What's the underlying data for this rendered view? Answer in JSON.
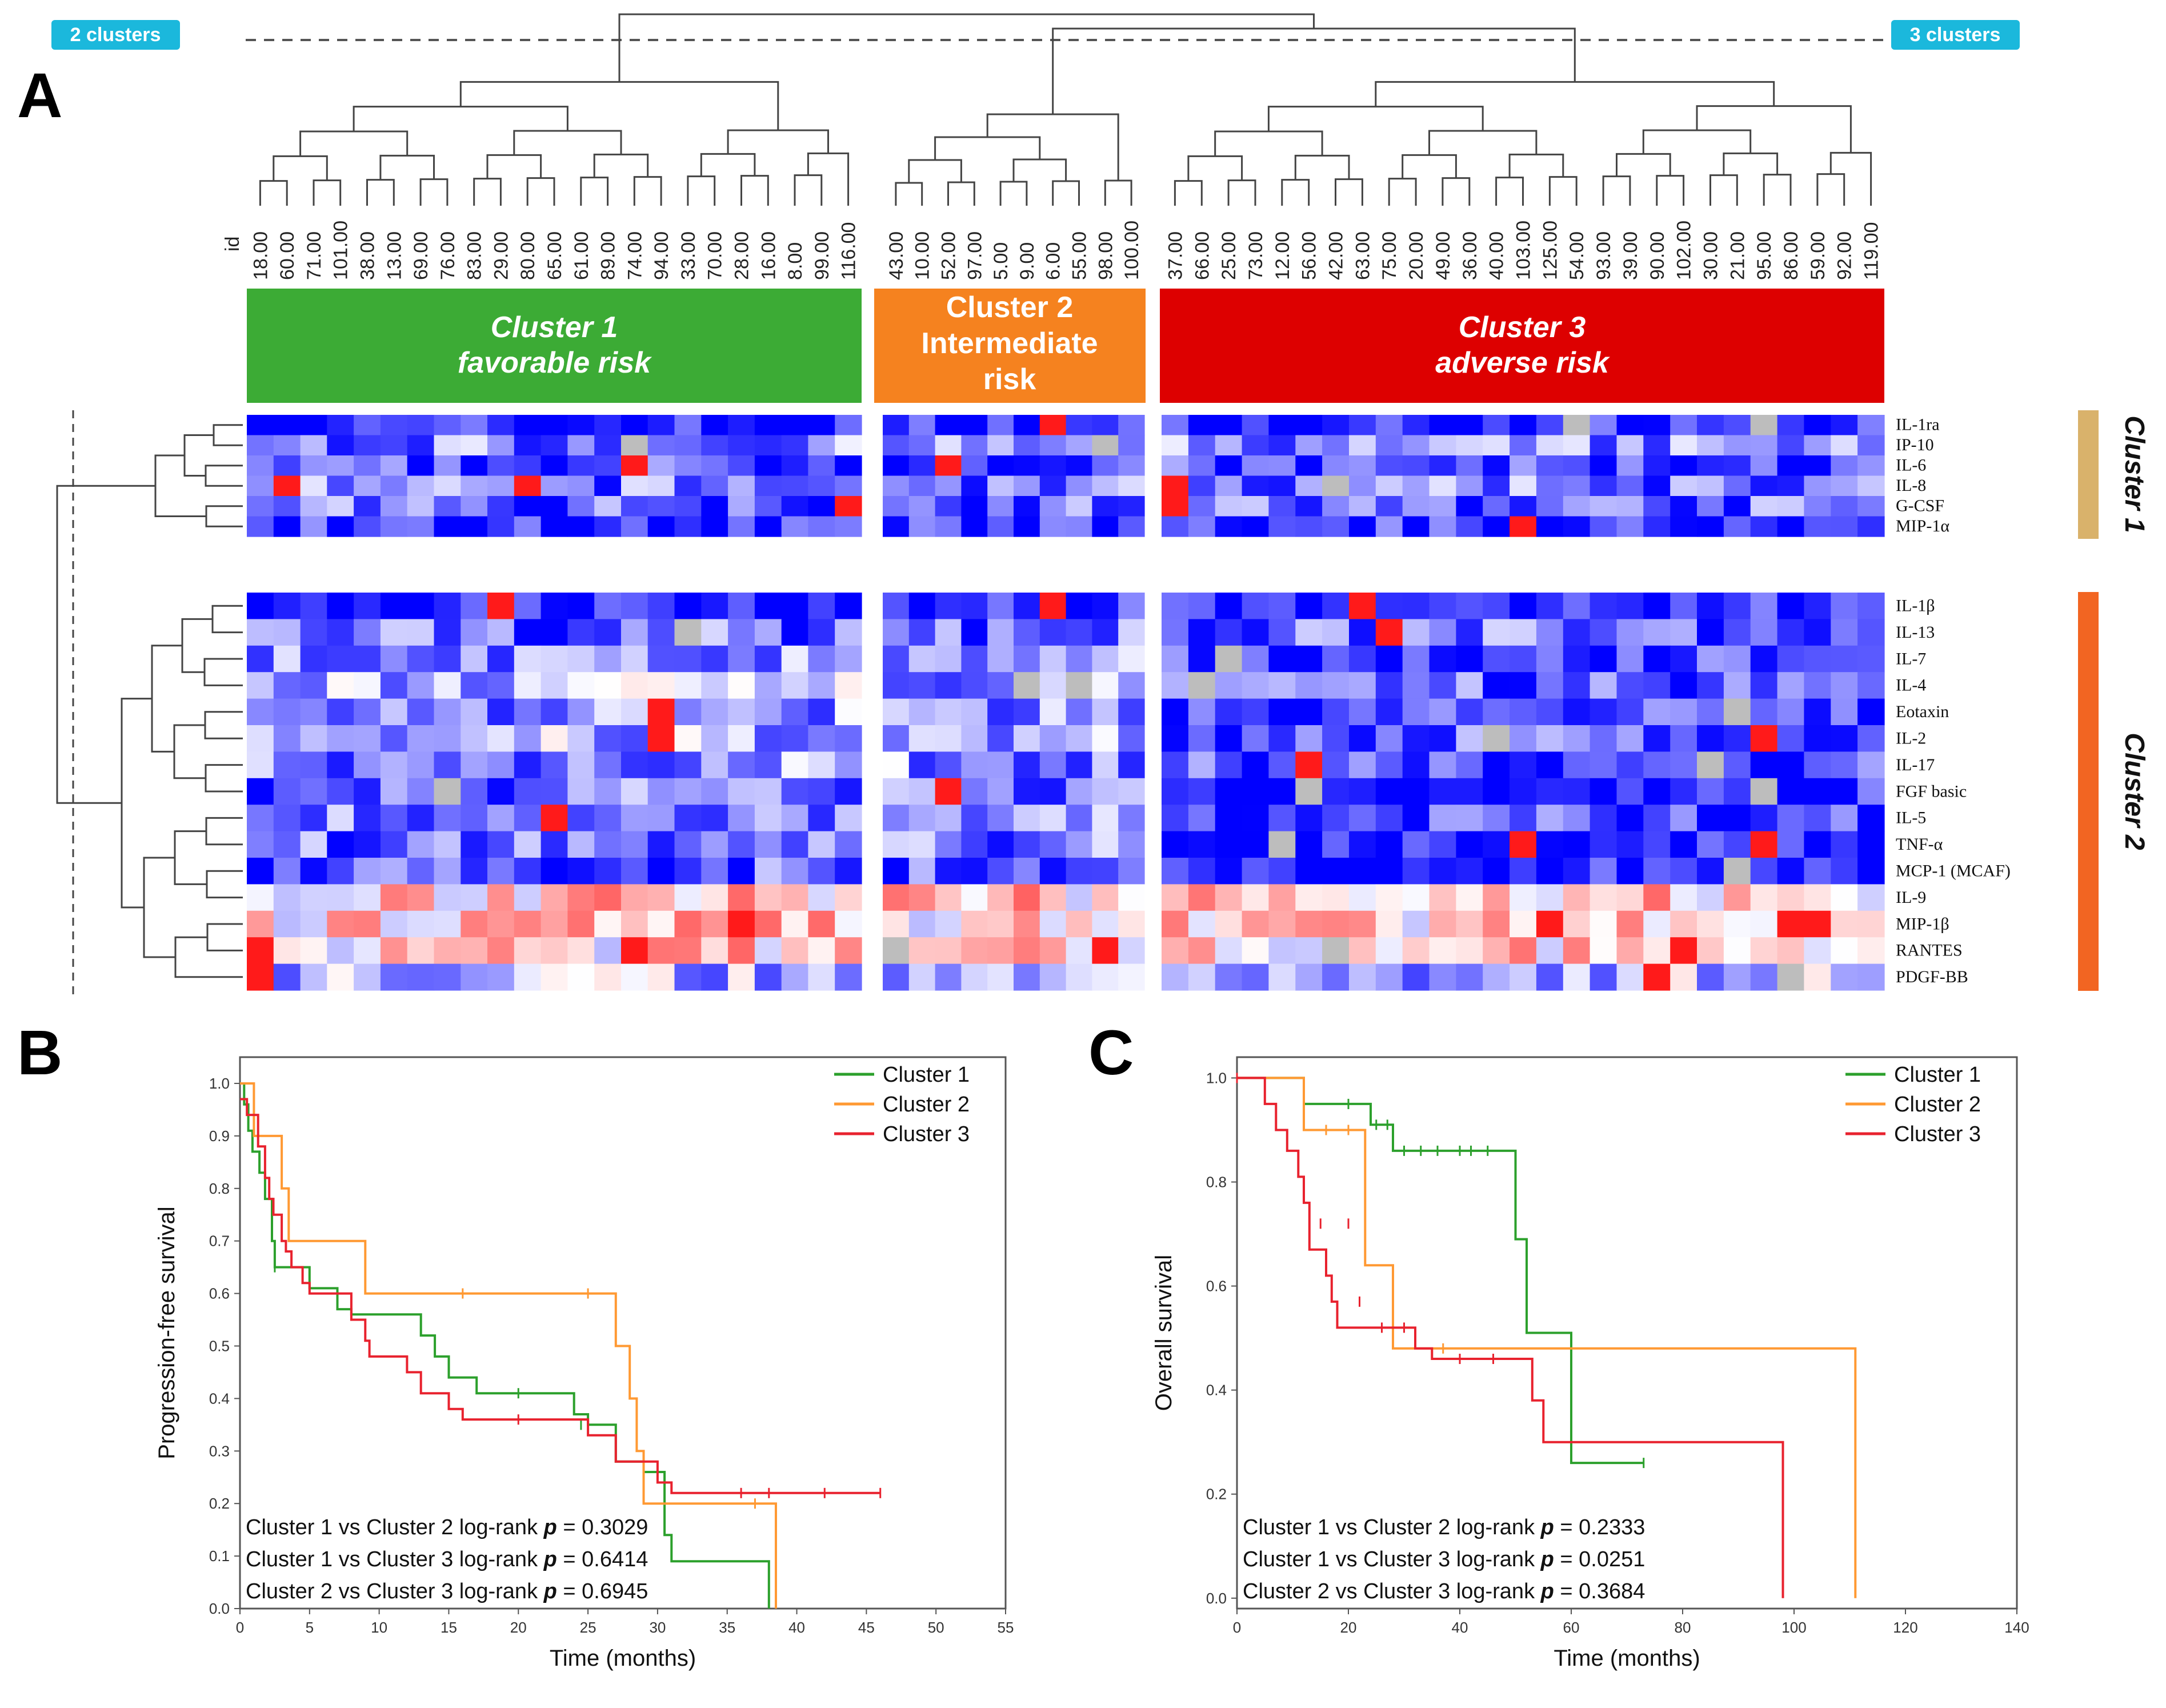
{
  "panels": {
    "A": "A",
    "B": "B",
    "C": "C"
  },
  "badges": {
    "left": "2 clusters",
    "right": "3 clusters"
  },
  "colors": {
    "badge": "#1bb8dc",
    "cluster1": "#3cab35",
    "cluster2": "#f5821f",
    "cluster3": "#dd0000",
    "side1": "#d9b26b",
    "side2": "#f26522",
    "blue": "#0000ff",
    "red": "#ff0000",
    "na": "#bdbdbd"
  },
  "heatmap": {
    "id_header": "id",
    "groups": [
      {
        "key": "g1",
        "ids": [
          "18.00",
          "60.00",
          "71.00",
          "101.00",
          "38.00",
          "13.00",
          "69.00",
          "76.00",
          "83.00",
          "29.00",
          "80.00",
          "65.00",
          "61.00",
          "89.00",
          "74.00",
          "94.00",
          "33.00",
          "70.00",
          "28.00",
          "16.00",
          "8.00",
          "99.00",
          "116.00"
        ]
      },
      {
        "key": "g2",
        "ids": [
          "43.00",
          "10.00",
          "52.00",
          "97.00",
          "5.00",
          "9.00",
          "6.00",
          "55.00",
          "98.00",
          "100.00"
        ]
      },
      {
        "key": "g3",
        "ids": [
          "37.00",
          "66.00",
          "25.00",
          "73.00",
          "12.00",
          "56.00",
          "42.00",
          "63.00",
          "75.00",
          "20.00",
          "49.00",
          "36.00",
          "40.00",
          "103.00",
          "125.00",
          "54.00",
          "93.00",
          "39.00",
          "90.00",
          "102.00",
          "30.00",
          "21.00",
          "95.00",
          "86.00",
          "59.00",
          "92.00",
          "119.00"
        ]
      }
    ],
    "cluster_boxes": [
      {
        "line1": "Cluster 1",
        "line2": "favorable risk"
      },
      {
        "line1": "Cluster 2",
        "line2": "Intermediate",
        "line3": "risk"
      },
      {
        "line1": "Cluster 3",
        "line2": "adverse risk"
      }
    ],
    "rows_top": [
      "IL-1ra",
      "IP-10",
      "IL-6",
      "IL-8",
      "G-CSF",
      "MIP-1α"
    ],
    "rows_bottom": [
      "IL-1β",
      "IL-13",
      "IL-7",
      "IL-4",
      "Eotaxin",
      "IL-2",
      "IL-17",
      "FGF basic",
      "IL-5",
      "TNF-α",
      "MCP-1 (MCAF)",
      "IL-9",
      "MIP-1β",
      "RANTES",
      "PDGF-BB"
    ],
    "side_labels": [
      "Cluster 1",
      "Cluster 2"
    ]
  },
  "chart_data": [
    {
      "type": "line",
      "panel": "B",
      "xlabel": "Time (months)",
      "ylabel": "Progression-free survival",
      "xlim": [
        0,
        55
      ],
      "ylim": [
        0,
        1.05
      ],
      "xticks": [
        "0",
        "5",
        "10",
        "15",
        "20",
        "25",
        "30",
        "35",
        "40",
        "45",
        "50",
        "55"
      ],
      "yticks": [
        "0.0",
        "0.1",
        "0.2",
        "0.3",
        "0.4",
        "0.5",
        "0.6",
        "0.7",
        "0.8",
        "0.9",
        "1.0"
      ],
      "legend": [
        "Cluster 1",
        "Cluster 2",
        "Cluster 3"
      ],
      "legend_position": "top-right",
      "series": [
        {
          "name": "Cluster 1",
          "color": "#2ca02c",
          "steps": [
            [
              0,
              1.0
            ],
            [
              0.3,
              0.96
            ],
            [
              0.6,
              0.91
            ],
            [
              0.9,
              0.87
            ],
            [
              1.4,
              0.83
            ],
            [
              1.8,
              0.78
            ],
            [
              2.3,
              0.7
            ],
            [
              2.5,
              0.65
            ],
            [
              5,
              0.61
            ],
            [
              7,
              0.57
            ],
            [
              8,
              0.56
            ],
            [
              13,
              0.52
            ],
            [
              14,
              0.48
            ],
            [
              15,
              0.44
            ],
            [
              17,
              0.41
            ],
            [
              24,
              0.37
            ],
            [
              25,
              0.35
            ],
            [
              27,
              0.28
            ],
            [
              29,
              0.26
            ],
            [
              30.5,
              0.14
            ],
            [
              31,
              0.09
            ],
            [
              38,
              0.0
            ],
            [
              38,
              0.0
            ]
          ],
          "censors": [
            [
              2.5,
              0.65
            ],
            [
              20,
              0.41
            ],
            [
              24.5,
              0.35
            ]
          ]
        },
        {
          "name": "Cluster 2",
          "color": "#ff9933",
          "steps": [
            [
              0,
              1.0
            ],
            [
              1,
              0.9
            ],
            [
              3,
              0.8
            ],
            [
              3.5,
              0.7
            ],
            [
              9,
              0.6
            ],
            [
              27,
              0.5
            ],
            [
              28,
              0.4
            ],
            [
              28.5,
              0.3
            ],
            [
              29,
              0.2
            ],
            [
              38.5,
              0.0
            ],
            [
              38.5,
              0.0
            ]
          ],
          "censors": [
            [
              16,
              0.6
            ],
            [
              25,
              0.6
            ],
            [
              37,
              0.2
            ]
          ]
        },
        {
          "name": "Cluster 3",
          "color": "#e8222e",
          "steps": [
            [
              0,
              0.97
            ],
            [
              0.5,
              0.94
            ],
            [
              1.3,
              0.88
            ],
            [
              1.8,
              0.82
            ],
            [
              2.1,
              0.78
            ],
            [
              2.4,
              0.75
            ],
            [
              3,
              0.7
            ],
            [
              3.3,
              0.68
            ],
            [
              3.7,
              0.65
            ],
            [
              4.5,
              0.62
            ],
            [
              5,
              0.6
            ],
            [
              8,
              0.55
            ],
            [
              9,
              0.51
            ],
            [
              9.3,
              0.48
            ],
            [
              12,
              0.45
            ],
            [
              13,
              0.41
            ],
            [
              15,
              0.38
            ],
            [
              16,
              0.36
            ],
            [
              25,
              0.33
            ],
            [
              27,
              0.28
            ],
            [
              30,
              0.24
            ],
            [
              31,
              0.22
            ],
            [
              46,
              0.22
            ]
          ],
          "censors": [
            [
              20,
              0.36
            ],
            [
              36,
              0.22
            ],
            [
              38,
              0.22
            ],
            [
              42,
              0.22
            ],
            [
              46,
              0.22
            ]
          ]
        }
      ],
      "annotations": [
        {
          "text": "Cluster 1 vs Cluster 2 log-rank",
          "p": "p",
          "value": "= 0.3029"
        },
        {
          "text": "Cluster 1 vs Cluster 3 log-rank",
          "p": "p",
          "value": "= 0.6414"
        },
        {
          "text": "Cluster 2 vs Cluster 3 log-rank",
          "p": "p",
          "value": "= 0.6945"
        }
      ]
    },
    {
      "type": "line",
      "panel": "C",
      "xlabel": "Time (months)",
      "ylabel": "Overall survival",
      "xlim": [
        0,
        140
      ],
      "ylim": [
        -0.02,
        1.04
      ],
      "xticks": [
        "0",
        "20",
        "40",
        "60",
        "80",
        "100",
        "120",
        "140"
      ],
      "yticks": [
        "0.0",
        "0.2",
        "0.4",
        "0.6",
        "0.8",
        "1.0"
      ],
      "legend": [
        "Cluster 1",
        "Cluster 2",
        "Cluster 3"
      ],
      "legend_position": "top-right",
      "series": [
        {
          "name": "Cluster 1",
          "color": "#2ca02c",
          "steps": [
            [
              0,
              1.0
            ],
            [
              12,
              0.95
            ],
            [
              20,
              0.95
            ],
            [
              24,
              0.91
            ],
            [
              28,
              0.86
            ],
            [
              49,
              0.86
            ],
            [
              50,
              0.69
            ],
            [
              52,
              0.51
            ],
            [
              59,
              0.51
            ],
            [
              60,
              0.26
            ],
            [
              73,
              0.26
            ]
          ],
          "censors": [
            [
              20,
              0.95
            ],
            [
              25,
              0.91
            ],
            [
              27,
              0.91
            ],
            [
              30,
              0.86
            ],
            [
              33,
              0.86
            ],
            [
              36,
              0.86
            ],
            [
              40,
              0.86
            ],
            [
              42,
              0.86
            ],
            [
              45,
              0.86
            ],
            [
              73,
              0.26
            ]
          ]
        },
        {
          "name": "Cluster 2",
          "color": "#ff9933",
          "steps": [
            [
              0,
              1.0
            ],
            [
              12,
              0.9
            ],
            [
              22,
              0.9
            ],
            [
              23,
              0.64
            ],
            [
              27,
              0.64
            ],
            [
              28,
              0.48
            ],
            [
              111,
              0.48
            ],
            [
              111,
              0.0
            ]
          ],
          "censors": [
            [
              16,
              0.9
            ],
            [
              20,
              0.9
            ],
            [
              37,
              0.48
            ]
          ]
        },
        {
          "name": "Cluster 3",
          "color": "#e8222e",
          "steps": [
            [
              0,
              1.0
            ],
            [
              5,
              0.95
            ],
            [
              7,
              0.9
            ],
            [
              9,
              0.86
            ],
            [
              11,
              0.81
            ],
            [
              12,
              0.76
            ],
            [
              13,
              0.67
            ],
            [
              16,
              0.62
            ],
            [
              17,
              0.57
            ],
            [
              18,
              0.52
            ],
            [
              30,
              0.52
            ],
            [
              32,
              0.48
            ],
            [
              35,
              0.46
            ],
            [
              53,
              0.38
            ],
            [
              55,
              0.3
            ],
            [
              98,
              0.3
            ],
            [
              98,
              0.0
            ]
          ],
          "censors": [
            [
              0,
              1.0
            ],
            [
              15,
              0.72
            ],
            [
              20,
              0.72
            ],
            [
              22,
              0.57
            ],
            [
              26,
              0.52
            ],
            [
              30,
              0.52
            ],
            [
              40,
              0.46
            ],
            [
              46,
              0.46
            ]
          ]
        }
      ],
      "annotations": [
        {
          "text": "Cluster 1 vs Cluster 2 log-rank",
          "p": "p",
          "value": "= 0.2333"
        },
        {
          "text": "Cluster 1 vs Cluster 3 log-rank",
          "p": "p",
          "value": "= 0.0251"
        },
        {
          "text": "Cluster 2 vs Cluster 3 log-rank",
          "p": "p",
          "value": "= 0.3684"
        }
      ]
    }
  ]
}
